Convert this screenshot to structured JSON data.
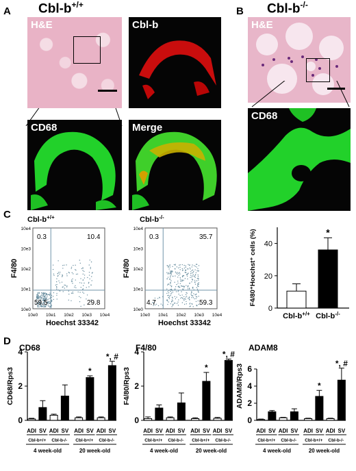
{
  "panelA": {
    "letter": "A",
    "genotype_base": "Cbl-b",
    "genotype_sup": "+/+",
    "hne_label": "H&E",
    "cblb_label": "Cbl-b",
    "cd68_label": "CD68",
    "merge_label": "Merge"
  },
  "panelB": {
    "letter": "B",
    "genotype_base": "Cbl-b",
    "genotype_sup": "-/-",
    "hne_label": "H&E",
    "cd68_label": "CD68"
  },
  "panelC": {
    "letter": "C",
    "flow": [
      {
        "title_base": "Cbl-b",
        "title_sup": "+/+",
        "quadrants": {
          "ul": "0.3",
          "ur": "10.4",
          "ll": "59.5",
          "lr": "29.8"
        },
        "xlabel": "Hoechst 33342",
        "ylabel": "F4/80",
        "xticks": [
          "10e0",
          "10e1",
          "10e2",
          "10e3",
          "10e4"
        ],
        "yticks": [
          "10e4",
          "10e3",
          "10e2",
          "10e1",
          "10e0"
        ]
      },
      {
        "title_base": "Cbl-b",
        "title_sup": "-/-",
        "quadrants": {
          "ul": "0.3",
          "ur": "35.7",
          "ll": "4.7",
          "lr": "59.3"
        },
        "xlabel": "Hoechst 33342",
        "ylabel": "F4/80",
        "xticks": [
          "10e0",
          "10e1",
          "10e2",
          "10e3",
          "10e4"
        ],
        "yticks": [
          "10e4",
          "10e3",
          "10e2",
          "10e1",
          "10e0"
        ]
      }
    ]
  },
  "panelD": {
    "letter": "D"
  },
  "chart_data": [
    {
      "type": "bar",
      "ylabel": "F4/80⁺Hoechst⁺ cells (%)",
      "ylim": [
        0,
        50
      ],
      "yticks": [
        0,
        20,
        40
      ],
      "categories": [
        "Cbl-b+/+",
        "Cbl-b-/-"
      ],
      "category_labels": [
        [
          "Cbl-b",
          "+/+"
        ],
        [
          "Cbl-b",
          "-/-"
        ]
      ],
      "values": [
        10.5,
        36
      ],
      "errors": [
        4.5,
        7.5
      ],
      "fills": [
        "#ffffff",
        "#000000"
      ],
      "annotations": [
        "",
        "*"
      ]
    },
    {
      "type": "bar",
      "title": "CD68",
      "ylabel": "CD68/Rps3",
      "ylim": [
        0,
        4
      ],
      "yticks": [
        0,
        2,
        4
      ],
      "bars": [
        {
          "fill": "#ffffff",
          "value": 0.08,
          "error": 0.04,
          "mark": ""
        },
        {
          "fill": "#000000",
          "value": 0.75,
          "error": 0.4,
          "mark": ""
        },
        {
          "fill": "#ffffff",
          "value": 0.3,
          "error": 0.06,
          "mark": ""
        },
        {
          "fill": "#000000",
          "value": 1.42,
          "error": 0.65,
          "mark": ""
        },
        {
          "fill": "#ffffff",
          "value": 0.15,
          "error": 0.05,
          "mark": ""
        },
        {
          "fill": "#000000",
          "value": 2.5,
          "error": 0.1,
          "mark": "*"
        },
        {
          "fill": "#ffffff",
          "value": 0.15,
          "error": 0.05,
          "mark": ""
        },
        {
          "fill": "#000000",
          "value": 3.2,
          "error": 0.25,
          "mark": "*, #"
        }
      ],
      "adi_sv": [
        "ADI",
        "SV",
        "ADI",
        "SV",
        "ADI",
        "SV",
        "ADI",
        "SV"
      ],
      "genotypes": [
        "Cbl-b+/+",
        "Cbl-b-/-",
        "Cbl-b+/+",
        "Cbl-b-/-"
      ],
      "ages": [
        "4 week-old",
        "20 week-old"
      ]
    },
    {
      "type": "bar",
      "title": "F4/80",
      "ylabel": "F4/80/Rps3",
      "ylim": [
        0,
        4
      ],
      "yticks": [
        0,
        2,
        4
      ],
      "bars": [
        {
          "fill": "#ffffff",
          "value": 0.1,
          "error": 0.1,
          "mark": ""
        },
        {
          "fill": "#000000",
          "value": 0.72,
          "error": 0.18,
          "mark": ""
        },
        {
          "fill": "#ffffff",
          "value": 0.15,
          "error": 0.05,
          "mark": ""
        },
        {
          "fill": "#000000",
          "value": 1.02,
          "error": 0.58,
          "mark": ""
        },
        {
          "fill": "#ffffff",
          "value": 0.1,
          "error": 0.05,
          "mark": ""
        },
        {
          "fill": "#000000",
          "value": 2.28,
          "error": 0.52,
          "mark": "*"
        },
        {
          "fill": "#ffffff",
          "value": 0.12,
          "error": 0.05,
          "mark": ""
        },
        {
          "fill": "#000000",
          "value": 3.5,
          "error": 0.08,
          "mark": "*, #"
        }
      ],
      "adi_sv": [
        "ADI",
        "SV",
        "ADI",
        "SV",
        "ADI",
        "SV",
        "ADI",
        "SV"
      ],
      "genotypes": [
        "Cbl-b+/+",
        "Cbl-b-/-",
        "Cbl-b+/+",
        "Cbl-b-/-"
      ],
      "ages": [
        "4 week-old",
        "20 week-old"
      ]
    },
    {
      "type": "bar",
      "title": "ADAM8",
      "ylabel": "ADAM8/Rps3",
      "ylim": [
        0,
        8
      ],
      "yticks": [
        0,
        2,
        4,
        6
      ],
      "bars": [
        {
          "fill": "#ffffff",
          "value": 0.1,
          "error": 0.05,
          "mark": ""
        },
        {
          "fill": "#000000",
          "value": 1.0,
          "error": 0.15,
          "mark": ""
        },
        {
          "fill": "#ffffff",
          "value": 0.3,
          "error": 0.05,
          "mark": ""
        },
        {
          "fill": "#000000",
          "value": 1.0,
          "error": 0.35,
          "mark": ""
        },
        {
          "fill": "#ffffff",
          "value": 0.2,
          "error": 0.05,
          "mark": ""
        },
        {
          "fill": "#000000",
          "value": 2.8,
          "error": 0.7,
          "mark": "*"
        },
        {
          "fill": "#ffffff",
          "value": 0.2,
          "error": 0.05,
          "mark": ""
        },
        {
          "fill": "#000000",
          "value": 4.7,
          "error": 1.4,
          "mark": "*, #"
        }
      ],
      "adi_sv": [
        "ADI",
        "SV",
        "ADI",
        "SV",
        "ADI",
        "SV",
        "ADI",
        "SV"
      ],
      "genotypes": [
        "Cbl-b+/+",
        "Cbl-b-/-",
        "Cbl-b+/+",
        "Cbl-b-/-"
      ],
      "ages": [
        "4 week-old",
        "20 week-old"
      ]
    }
  ],
  "colors": {
    "hne_pink": "#e9b3c6",
    "cblb_red": "#e01010",
    "cd68_green": "#22d12a",
    "merge_yellow": "#c9b000",
    "flow_dots": "#6a8fa0",
    "quadrant_line": "#6f92a8"
  }
}
